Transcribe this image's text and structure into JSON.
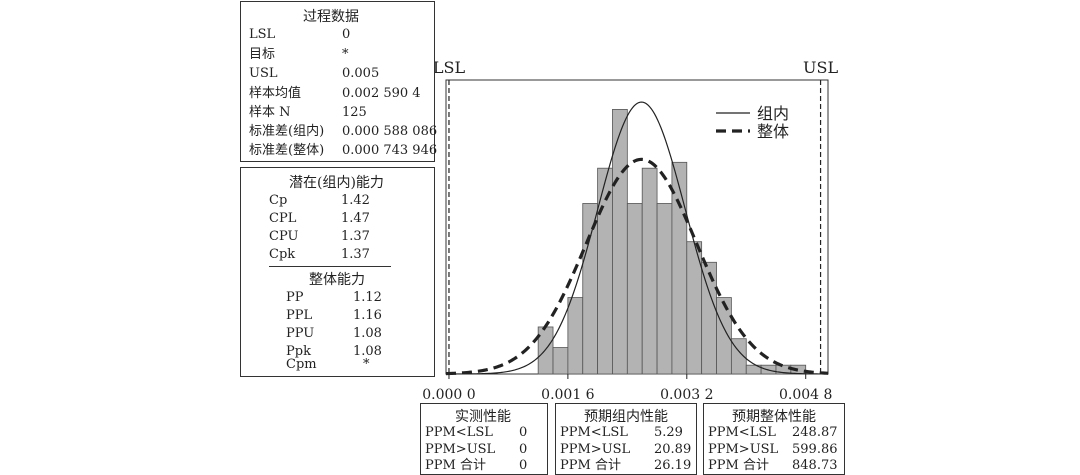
{
  "process_data": {
    "title": "过程数据",
    "rows": [
      {
        "label": "LSL",
        "value": "0"
      },
      {
        "label": "目标",
        "value": "*"
      },
      {
        "label": "USL",
        "value": "0.005"
      },
      {
        "label": "样本均值",
        "value": "0.002 590 4"
      },
      {
        "label": "样本 N",
        "value": "125"
      },
      {
        "label": "标准差(组内)",
        "value": "0.000 588 086"
      },
      {
        "label": "标准差(整体)",
        "value": "0.000 743 946"
      }
    ]
  },
  "potential_capability": {
    "title": "潜在(组内)能力",
    "rows": [
      {
        "label": "Cp",
        "value": "1.42"
      },
      {
        "label": "CPL",
        "value": "1.47"
      },
      {
        "label": "CPU",
        "value": "1.37"
      },
      {
        "label": "Cpk",
        "value": "1.37"
      }
    ]
  },
  "overall_capability": {
    "title": "整体能力",
    "rows": [
      {
        "label": "PP",
        "value": "1.12"
      },
      {
        "label": "PPL",
        "value": "1.16"
      },
      {
        "label": "PPU",
        "value": "1.08"
      },
      {
        "label": "Ppk",
        "value": "1.08"
      },
      {
        "label": "Cpm",
        "value": "*"
      }
    ]
  },
  "observed_performance": {
    "title": "实测性能",
    "rows": [
      {
        "label": "PPM<LSL",
        "value": "0"
      },
      {
        "label": "PPM>USL",
        "value": "0"
      },
      {
        "label": "PPM 合计",
        "value": "0"
      }
    ]
  },
  "expected_within": {
    "title": "预期组内性能",
    "rows": [
      {
        "label": "PPM<LSL",
        "value": "5.29"
      },
      {
        "label": "PPM>USL",
        "value": "20.89"
      },
      {
        "label": "PPM 合计",
        "value": "26.19"
      }
    ]
  },
  "expected_overall": {
    "title": "预期整体性能",
    "rows": [
      {
        "label": "PPM<LSL",
        "value": "248.87"
      },
      {
        "label": "PPM>USL",
        "value": "599.86"
      },
      {
        "label": "PPM 合计",
        "value": "848.73"
      }
    ]
  },
  "chart_data": {
    "type": "bar",
    "x_range": [
      -4e-05,
      0.0051
    ],
    "y_range": [
      0,
      1.0
    ],
    "tick_labels": [
      "0.000 0",
      "0.001 6",
      "0.003 2",
      "0.004 8"
    ],
    "tick_values": [
      0,
      0.0016,
      0.0032,
      0.0048
    ],
    "bin_width": 0.0002,
    "bins": [
      {
        "start": 0.0012,
        "height": 0.16
      },
      {
        "start": 0.0014,
        "height": 0.09
      },
      {
        "start": 0.0016,
        "height": 0.26
      },
      {
        "start": 0.0018,
        "height": 0.58
      },
      {
        "start": 0.002,
        "height": 0.7
      },
      {
        "start": 0.0022,
        "height": 0.9
      },
      {
        "start": 0.0024,
        "height": 0.58
      },
      {
        "start": 0.0026,
        "height": 0.7
      },
      {
        "start": 0.0028,
        "height": 0.58
      },
      {
        "start": 0.003,
        "height": 0.72
      },
      {
        "start": 0.0032,
        "height": 0.45
      },
      {
        "start": 0.0034,
        "height": 0.38
      },
      {
        "start": 0.0036,
        "height": 0.26
      },
      {
        "start": 0.0038,
        "height": 0.12
      },
      {
        "start": 0.004,
        "height": 0.03
      },
      {
        "start": 0.0042,
        "height": 0.03
      },
      {
        "start": 0.0044,
        "height": 0.03
      },
      {
        "start": 0.0046,
        "height": 0.03
      }
    ],
    "within_curve": {
      "name": "组内",
      "mean": 0.0025904,
      "sd": 0.000588086,
      "peak": 0.925
    },
    "overall_curve": {
      "name": "整体",
      "mean": 0.0025904,
      "sd": 0.000743946,
      "peak": 0.73
    },
    "lsl": {
      "label": "LSL",
      "value": 0
    },
    "usl": {
      "label": "USL",
      "value": 0.005
    },
    "legend": [
      {
        "name": "组内",
        "style": "solid"
      },
      {
        "name": "整体",
        "style": "dashed"
      }
    ],
    "legend_position": "top-right",
    "bar_fill": "#b3b3b3",
    "bar_stroke": "#555555"
  }
}
